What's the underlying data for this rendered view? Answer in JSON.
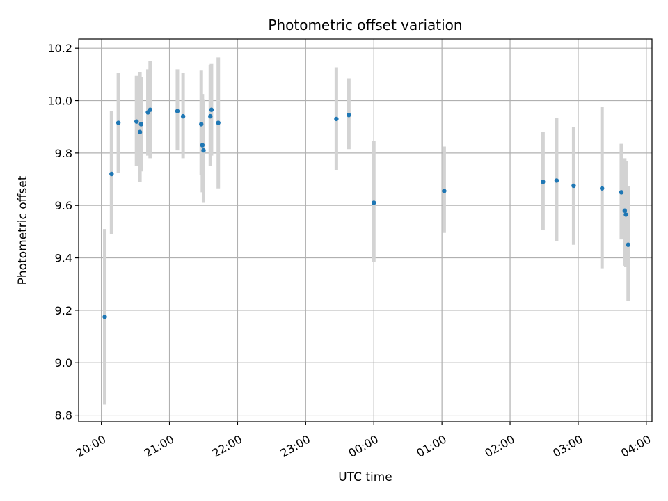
{
  "chart_data": {
    "type": "scatter",
    "title": "Photometric offset variation",
    "xlabel": "UTC time",
    "ylabel": "Photometric offset",
    "grid": true,
    "x_unit": "UTC time (HH:MM, evening to following morning)",
    "xlim": [
      "19:40",
      "04:05"
    ],
    "ylim": [
      8.775,
      10.235
    ],
    "x_ticks": [
      "20:00",
      "21:00",
      "22:00",
      "23:00",
      "00:00",
      "01:00",
      "02:00",
      "03:00",
      "04:00"
    ],
    "y_ticks": [
      "8.8",
      "9.0",
      "9.2",
      "9.4",
      "9.6",
      "9.8",
      "10.0",
      "10.2"
    ],
    "colors": {
      "point": "#1f77b4",
      "error_bar": "#d3d3d3",
      "grid": "#b0b0b0"
    },
    "points": [
      {
        "x": "20:03",
        "y": 9.175,
        "lo": 8.84,
        "hi": 9.51
      },
      {
        "x": "20:09",
        "y": 9.72,
        "lo": 9.49,
        "hi": 9.96
      },
      {
        "x": "20:15",
        "y": 9.915,
        "lo": 9.725,
        "hi": 10.105
      },
      {
        "x": "20:31",
        "y": 9.92,
        "lo": 9.75,
        "hi": 10.095
      },
      {
        "x": "20:34",
        "y": 9.88,
        "lo": 9.69,
        "hi": 10.11
      },
      {
        "x": "20:35",
        "y": 9.91,
        "lo": 9.73,
        "hi": 10.09
      },
      {
        "x": "20:41",
        "y": 9.955,
        "lo": 9.79,
        "hi": 10.12
      },
      {
        "x": "20:43",
        "y": 9.965,
        "lo": 9.78,
        "hi": 10.15
      },
      {
        "x": "21:07",
        "y": 9.96,
        "lo": 9.81,
        "hi": 10.12
      },
      {
        "x": "21:12",
        "y": 9.94,
        "lo": 9.78,
        "hi": 10.105
      },
      {
        "x": "21:28",
        "y": 9.91,
        "lo": 9.715,
        "hi": 10.115
      },
      {
        "x": "21:29",
        "y": 9.83,
        "lo": 9.65,
        "hi": 10.025
      },
      {
        "x": "21:30",
        "y": 9.81,
        "lo": 9.61,
        "hi": 10.005
      },
      {
        "x": "21:36",
        "y": 9.94,
        "lo": 9.75,
        "hi": 10.135
      },
      {
        "x": "21:37",
        "y": 9.965,
        "lo": 9.79,
        "hi": 10.14
      },
      {
        "x": "21:43",
        "y": 9.915,
        "lo": 9.665,
        "hi": 10.165
      },
      {
        "x": "23:27",
        "y": 9.93,
        "lo": 9.735,
        "hi": 10.125
      },
      {
        "x": "23:38",
        "y": 9.945,
        "lo": 9.815,
        "hi": 10.085
      },
      {
        "x": "00:00",
        "y": 9.61,
        "lo": 9.385,
        "hi": 9.845
      },
      {
        "x": "01:02",
        "y": 9.655,
        "lo": 9.495,
        "hi": 9.825
      },
      {
        "x": "02:29",
        "y": 9.69,
        "lo": 9.505,
        "hi": 9.88
      },
      {
        "x": "02:41",
        "y": 9.695,
        "lo": 9.465,
        "hi": 9.935
      },
      {
        "x": "02:56",
        "y": 9.675,
        "lo": 9.45,
        "hi": 9.9
      },
      {
        "x": "03:21",
        "y": 9.665,
        "lo": 9.36,
        "hi": 9.975
      },
      {
        "x": "03:38",
        "y": 9.65,
        "lo": 9.47,
        "hi": 9.835
      },
      {
        "x": "03:41",
        "y": 9.58,
        "lo": 9.37,
        "hi": 9.78
      },
      {
        "x": "03:42",
        "y": 9.565,
        "lo": 9.365,
        "hi": 9.77
      },
      {
        "x": "03:44",
        "y": 9.45,
        "lo": 9.235,
        "hi": 9.675
      }
    ]
  }
}
